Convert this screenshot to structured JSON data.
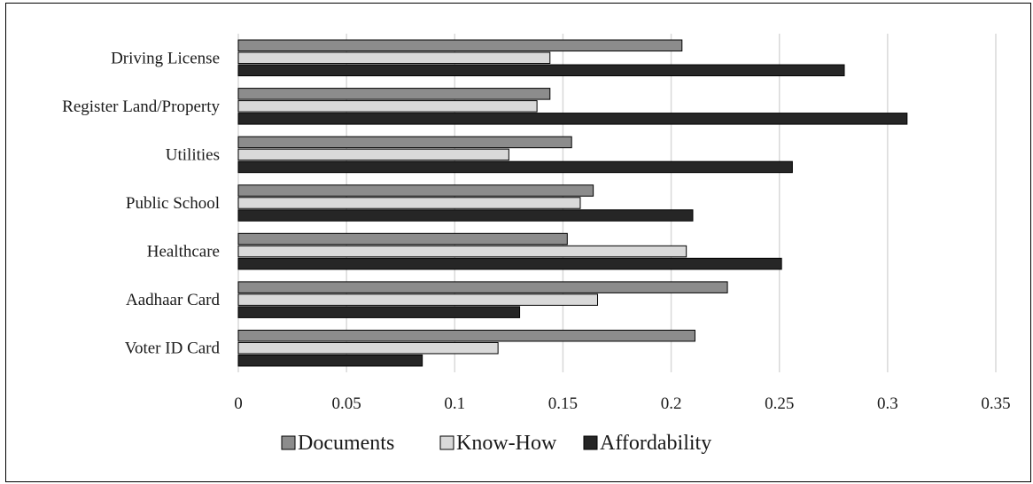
{
  "chart_data": {
    "type": "bar",
    "orientation": "horizontal",
    "categories": [
      "Driving License",
      "Register Land/Property",
      "Utilities",
      "Public School",
      "Healthcare",
      "Aadhaar Card",
      "Voter ID Card"
    ],
    "series": [
      {
        "name": "Documents",
        "color": "#8c8c8c",
        "values": [
          0.205,
          0.144,
          0.154,
          0.164,
          0.152,
          0.226,
          0.211
        ]
      },
      {
        "name": "Know-How",
        "color": "#d9d9d9",
        "values": [
          0.144,
          0.138,
          0.125,
          0.158,
          0.207,
          0.166,
          0.12
        ]
      },
      {
        "name": "Affordability",
        "color": "#262626",
        "values": [
          0.28,
          0.309,
          0.256,
          0.21,
          0.251,
          0.13,
          0.085
        ]
      }
    ],
    "xlim": [
      0,
      0.35
    ],
    "xticks": [
      0,
      0.05,
      0.1,
      0.15,
      0.2,
      0.25,
      0.3,
      0.35
    ],
    "xtick_labels": [
      "0",
      "0.05",
      "0.1",
      "0.15",
      "0.2",
      "0.25",
      "0.3",
      "0.35"
    ],
    "grid": true,
    "legend_position": "bottom",
    "title": "",
    "xlabel": "",
    "ylabel": ""
  }
}
